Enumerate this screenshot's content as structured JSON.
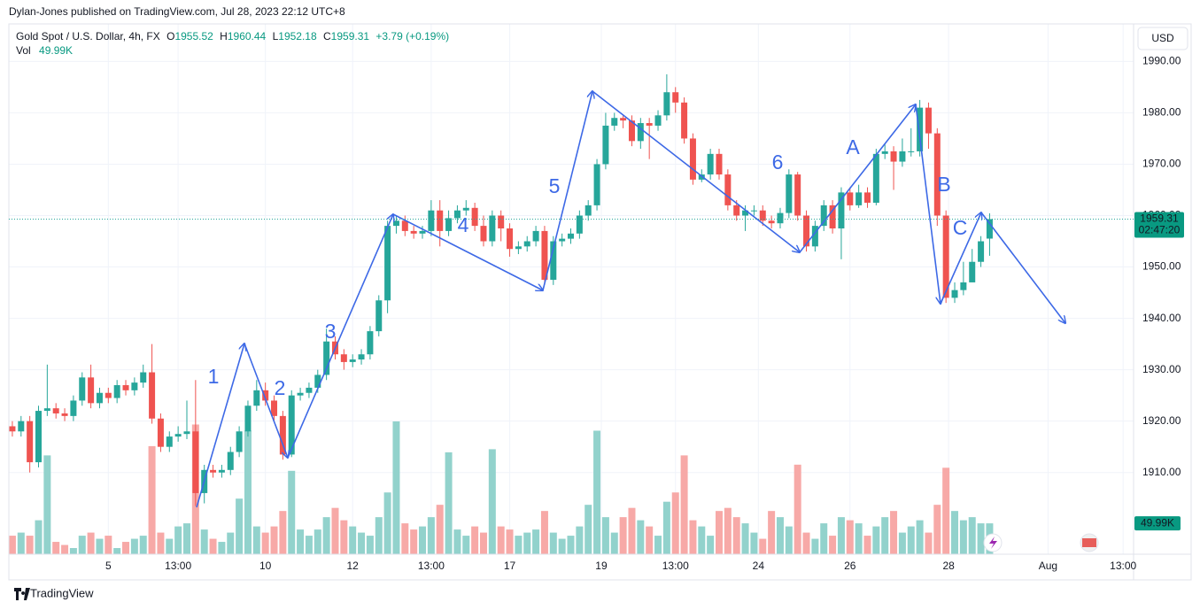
{
  "chart_data": {
    "type": "candlestick",
    "attribution": "Dylan-Jones published on TradingView.com, Jul 28, 2023 22:12 UTC+8",
    "title": "Gold Spot / U.S. Dollar, 4h, FX",
    "ohlc_prefixes": [
      "O",
      "H",
      "L",
      "C"
    ],
    "change": "+3.79 (+0.19%)",
    "volume_title": "Vol",
    "volume_last_label": "49.99K",
    "countdown": "02:47:20",
    "currency": "USD",
    "brand": "TradingView",
    "wave_labels": [
      "1",
      "2",
      "3",
      "4",
      "5",
      "6",
      "A",
      "B",
      "C"
    ],
    "up_color": "#26a69a",
    "down_color": "#ef5350",
    "volume_up_color": "#92d2cc",
    "volume_down_color": "#f7a9a7",
    "grid": true,
    "open": [
      1919,
      1918,
      1920,
      1912,
      1922,
      1922.5,
      1921.5,
      1921,
      1924,
      1928.5,
      1923.5,
      1925.5,
      1924.5,
      1927,
      1926,
      1927.5,
      1929.5,
      1920.5,
      1915,
      1917,
      1917.5,
      1918,
      1906,
      1910.5,
      1910,
      1910.5,
      1914,
      1918,
      1923,
      1926,
      1924,
      1921,
      1913.5,
      1925,
      1925.5,
      1926.5,
      1929,
      1935.5,
      1933,
      1931.5,
      1932,
      1933,
      1937.5,
      1943.5,
      1958,
      1959,
      1957,
      1956.5,
      1957,
      1961,
      1957,
      1959.5,
      1961,
      1961.5,
      1958,
      1955,
      1960,
      1957.5,
      1953.5,
      1954,
      1955,
      1957,
      1947.5,
      1955,
      1955.5,
      1956.5,
      1960,
      1962,
      1970,
      1977.5,
      1979,
      1978.5,
      1974.5,
      1978,
      1977.5,
      1979.5,
      1984,
      1982,
      1975,
      1967,
      1968,
      1972,
      1968,
      1962,
      1960,
      1961,
      1961,
      1959,
      1958.5,
      1960.5,
      1968,
      1960,
      1954,
      1958,
      1962,
      1957.5,
      1964.5,
      1962,
      1964.5,
      1962.5,
      1972,
      1972.5,
      1970.5,
      1972.5,
      1972.5,
      1981,
      1976,
      1960,
      1944,
      1945.5,
      1947,
      1951,
      1955.52
    ],
    "high": [
      1920,
      1921,
      1921,
      1923,
      1931,
      1923.5,
      1922.5,
      1925,
      1929.5,
      1931,
      1926.5,
      1926.5,
      1928,
      1928,
      1928.5,
      1931,
      1935,
      1921.5,
      1918,
      1919,
      1924,
      1928,
      1911.5,
      1911.5,
      1911.5,
      1915,
      1919,
      1924,
      1928,
      1927.5,
      1925,
      1922,
      1926,
      1926.5,
      1927.5,
      1930,
      1938,
      1936.5,
      1934,
      1933,
      1934,
      1938.5,
      1944.5,
      1959,
      1960,
      1960,
      1958,
      1958,
      1963,
      1963,
      1961,
      1962,
      1963,
      1962.5,
      1960,
      1961,
      1961,
      1958.5,
      1955,
      1956,
      1958,
      1958,
      1956,
      1956.5,
      1957.5,
      1961,
      1963,
      1971,
      1980,
      1980,
      1979.5,
      1979.5,
      1979,
      1979,
      1980.5,
      1987.5,
      1985,
      1983,
      1976,
      1969,
      1973,
      1973,
      1969,
      1963,
      1962,
      1962,
      1962,
      1960,
      1961.5,
      1969,
      1968.5,
      1961,
      1959,
      1963,
      1963,
      1965.5,
      1965.5,
      1966,
      1965.5,
      1973,
      1974,
      1973.5,
      1975,
      1977,
      1982.5,
      1982,
      1977,
      1961,
      1947,
      1951,
      1953.5,
      1956,
      1960.44
    ],
    "low": [
      1917,
      1917,
      1910,
      1911,
      1921,
      1920.5,
      1920,
      1920,
      1923,
      1922.5,
      1922.5,
      1923.5,
      1923.5,
      1925,
      1925,
      1926.5,
      1919.5,
      1914,
      1914,
      1916,
      1916.5,
      1903.5,
      1904,
      1909,
      1909,
      1909.5,
      1913,
      1917,
      1922,
      1923,
      1920,
      1912.5,
      1913,
      1924,
      1924.5,
      1925.5,
      1928,
      1932,
      1930,
      1930.5,
      1931,
      1932,
      1936.5,
      1941,
      1956.5,
      1956,
      1955.5,
      1955.5,
      1956,
      1954,
      1956,
      1958.5,
      1960,
      1957,
      1954,
      1954,
      1955,
      1952,
      1952.5,
      1953,
      1954,
      1946.5,
      1946.5,
      1954,
      1954.5,
      1955.5,
      1959,
      1961,
      1969,
      1976.5,
      1977,
      1973.5,
      1973,
      1971,
      1976.5,
      1978.5,
      1980,
      1974,
      1966,
      1966.5,
      1967,
      1967,
      1961,
      1959,
      1957,
      1960,
      1958,
      1957.5,
      1957.5,
      1959.5,
      1959,
      1953,
      1953,
      1957,
      1956.5,
      1951.5,
      1961,
      1961.5,
      1961.5,
      1962,
      1971,
      1965,
      1969.5,
      1971.5,
      1971.5,
      1973,
      1958,
      1943,
      1943,
      1944.5,
      1948,
      1950,
      1952.18
    ],
    "close": [
      1918,
      1920,
      1912,
      1922,
      1922.5,
      1921.5,
      1921,
      1924,
      1928.5,
      1923.5,
      1925.5,
      1924.5,
      1927,
      1926,
      1927.5,
      1929.5,
      1920.5,
      1915,
      1917,
      1917.5,
      1918,
      1906,
      1910.5,
      1910,
      1910.5,
      1914,
      1918,
      1923,
      1926,
      1924,
      1921,
      1913.5,
      1925,
      1925.5,
      1926.5,
      1929,
      1935.5,
      1933,
      1931.5,
      1932,
      1933,
      1937.5,
      1943.5,
      1958,
      1959,
      1957,
      1956.5,
      1957,
      1961,
      1957,
      1959.5,
      1961,
      1961.5,
      1958,
      1955,
      1960,
      1957.5,
      1953.5,
      1954,
      1955,
      1957,
      1947.5,
      1955,
      1955.5,
      1956.5,
      1960,
      1962,
      1970,
      1977.5,
      1979,
      1978.5,
      1974.5,
      1978,
      1977.5,
      1979.5,
      1984,
      1982,
      1975,
      1967,
      1968,
      1972,
      1968,
      1962,
      1960,
      1961,
      1961,
      1959,
      1958.5,
      1960.5,
      1968,
      1960,
      1954,
      1958,
      1962,
      1957.5,
      1964.5,
      1962,
      1964.5,
      1962.5,
      1972,
      1972.5,
      1970.5,
      1972.5,
      1972.5,
      1981,
      1976,
      1960,
      1944,
      1945.5,
      1947,
      1951,
      1955,
      1959.31
    ],
    "volume": [
      30,
      35,
      30,
      55,
      160,
      20,
      15,
      10,
      30,
      35,
      25,
      30,
      10,
      20,
      25,
      30,
      175,
      35,
      25,
      45,
      50,
      210,
      40,
      25,
      20,
      35,
      90,
      200,
      45,
      35,
      45,
      70,
      135,
      40,
      30,
      40,
      60,
      75,
      55,
      45,
      35,
      30,
      60,
      100,
      215,
      50,
      40,
      45,
      60,
      80,
      165,
      40,
      30,
      45,
      35,
      170,
      45,
      40,
      30,
      35,
      40,
      70,
      35,
      25,
      30,
      45,
      80,
      200,
      60,
      35,
      60,
      75,
      55,
      45,
      30,
      85,
      100,
      160,
      55,
      45,
      30,
      70,
      75,
      60,
      50,
      35,
      25,
      70,
      60,
      45,
      145,
      35,
      25,
      50,
      30,
      60,
      55,
      50,
      30,
      45,
      60,
      70,
      35,
      45,
      55,
      35,
      80,
      140,
      70,
      55,
      60,
      50,
      49.99
    ],
    "xlim": [
      -0.4,
      128.5
    ],
    "xticks": [
      {
        "value": 11,
        "label": "5"
      },
      {
        "value": 19,
        "label": "13:00"
      },
      {
        "value": 29,
        "label": "10"
      },
      {
        "value": 39,
        "label": "12"
      },
      {
        "value": 48,
        "label": "13:00"
      },
      {
        "value": 57,
        "label": "17"
      },
      {
        "value": 67.5,
        "label": "19"
      },
      {
        "value": 76,
        "label": "13:00"
      },
      {
        "value": 85.5,
        "label": "24"
      },
      {
        "value": 96,
        "label": "26"
      },
      {
        "value": 107.3,
        "label": "28"
      },
      {
        "value": 118.7,
        "label": "Aug"
      },
      {
        "value": 127.3,
        "label": "13:00"
      }
    ],
    "ylim": [
      1894.1,
      1997.3
    ],
    "yticks": [
      {
        "value": 1910,
        "label": "1910.00"
      },
      {
        "value": 1920,
        "label": "1920.00"
      },
      {
        "value": 1930,
        "label": "1930.00"
      },
      {
        "value": 1940,
        "label": "1940.00"
      },
      {
        "value": 1950,
        "label": "1950.00"
      },
      {
        "value": 1960,
        "label": "1960.00"
      },
      {
        "value": 1970,
        "label": "1970.00"
      },
      {
        "value": 1980,
        "label": "1980.00"
      },
      {
        "value": 1990,
        "label": "1990.00"
      }
    ]
  }
}
